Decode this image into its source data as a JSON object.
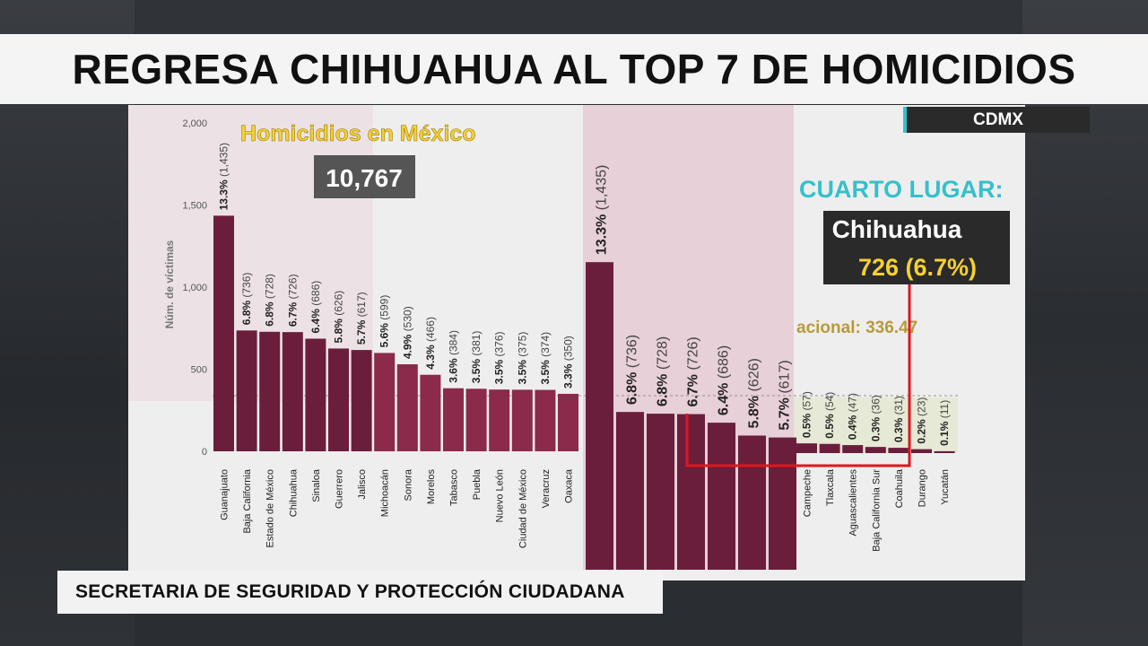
{
  "headline": "REGRESA CHIHUAHUA AL TOP 7 DE HOMICIDIOS",
  "location_tag": "CDMX",
  "source": "SECRETARIA DE SEGURIDAD Y PROTECCIÓN CIUDADANA",
  "callout": {
    "heading": "CUARTO LUGAR:",
    "state": "Chihuahua",
    "value": "726 (6.7%)",
    "partial_text": "acional: 336.47"
  },
  "colors": {
    "dark_bar": "#6b1e3c",
    "light_bar": "#8b2a4a",
    "accent_cyan": "#35c0cc",
    "accent_yellow": "#f5d033",
    "callout_red": "#e0151f"
  },
  "chart_data": [
    {
      "type": "bar",
      "title": "Homicidios en México",
      "total": "10,767",
      "ylabel": "Núm. de víctimas",
      "ylim": [
        0,
        2000
      ],
      "yticks": [
        "0",
        "500",
        "1,000",
        "1,500",
        "2,000"
      ],
      "categories": [
        "Guanajuato",
        "Baja California",
        "Estado de México",
        "Chihuahua",
        "Sinaloa",
        "Guerrero",
        "Jalisco",
        "Michoacán",
        "Sonora",
        "Morelos",
        "Tabasco",
        "Puebla",
        "Nuevo León",
        "Ciudad de México",
        "Veracruz",
        "Oaxaca"
      ],
      "values": [
        1435,
        736,
        728,
        726,
        686,
        626,
        617,
        599,
        530,
        466,
        384,
        381,
        376,
        375,
        374,
        350
      ],
      "pct_labels": [
        "13.3%",
        "6.8%",
        "6.8%",
        "6.7%",
        "6.4%",
        "5.8%",
        "5.7%",
        "5.6%",
        "4.9%",
        "4.3%",
        "3.6%",
        "3.5%",
        "3.5%",
        "3.5%",
        "3.5%",
        "3.3%"
      ],
      "count_labels": [
        "(1,435)",
        "(736)",
        "(728)",
        "(726)",
        "(686)",
        "(626)",
        "(617)",
        "(599)",
        "(530)",
        "(466)",
        "(384)",
        "(381)",
        "(376)",
        "(375)",
        "(374)",
        "(350)"
      ]
    },
    {
      "type": "bar",
      "note": "zoomed panel",
      "top_values": [
        1435,
        736,
        728,
        726,
        686,
        626,
        617
      ],
      "top_labels": [
        "13.3% (1,435)",
        "6.8% (736)",
        "6.8% (728)",
        "6.7% (726)",
        "6.4% (686)",
        "5.8% (626)",
        "5.7% (617)"
      ],
      "categories": [
        "Campeche",
        "Tlaxcala",
        "Aguascalientes",
        "Baja California Sur",
        "Coahuila",
        "Durango",
        "Yucatán"
      ],
      "values": [
        57,
        54,
        47,
        36,
        31,
        23,
        11
      ],
      "pct_labels": [
        "0.5%",
        "0.5%",
        "0.4%",
        "0.3%",
        "0.3%",
        "0.2%",
        "0.1%"
      ],
      "count_labels": [
        "(57)",
        "(54)",
        "(47)",
        "(36)",
        "(31)",
        "(23)",
        "(11)"
      ]
    }
  ]
}
